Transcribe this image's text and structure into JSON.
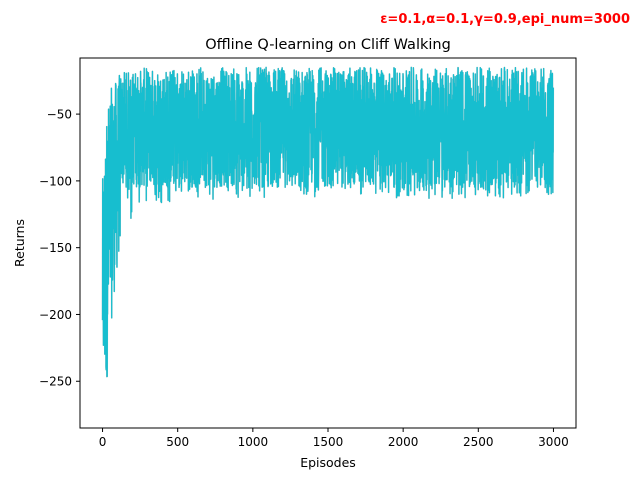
{
  "chart_data": {
    "type": "line",
    "title": "Offline Q-learning on Cliff Walking",
    "annotation": "ε=0.1,α=0.1,γ=0.9,epi_num=3000",
    "annotation_color": "#ff0000",
    "xlabel": "Episodes",
    "ylabel": "Returns",
    "xlim": [
      -150,
      3150
    ],
    "ylim": [
      -285,
      -8
    ],
    "xticks": [
      0,
      500,
      1000,
      1500,
      2000,
      2500,
      3000
    ],
    "xtick_labels": [
      "0",
      "500",
      "1000",
      "1500",
      "2000",
      "2500",
      "3000"
    ],
    "yticks": [
      -250,
      -200,
      -150,
      -100,
      -50
    ],
    "ytick_labels": [
      "−250",
      "−200",
      "−150",
      "−100",
      "−50"
    ],
    "grid": false,
    "legend": "none",
    "series_color": "#17becf",
    "shadow_color": "#8c8c8c",
    "episodes": 3000,
    "envelope": {
      "x": [
        0,
        20,
        35,
        50,
        70,
        90,
        110,
        150,
        200,
        250,
        300,
        400,
        500,
        700,
        1000,
        1500,
        2000,
        2500,
        3000
      ],
      "upper": [
        -100,
        -57,
        -40,
        -32,
        -28,
        -24,
        -20,
        -18,
        -17,
        -16,
        -15,
        -15,
        -15,
        -15,
        -15,
        -15,
        -15,
        -15,
        -15
      ],
      "lower": [
        -250,
        -268,
        -240,
        -220,
        -190,
        -175,
        -155,
        -140,
        -130,
        -124,
        -120,
        -117,
        -115,
        -114,
        -113,
        -113,
        -113,
        -113,
        -112
      ]
    },
    "typical_band": {
      "upper": -15,
      "lower": -105
    }
  }
}
